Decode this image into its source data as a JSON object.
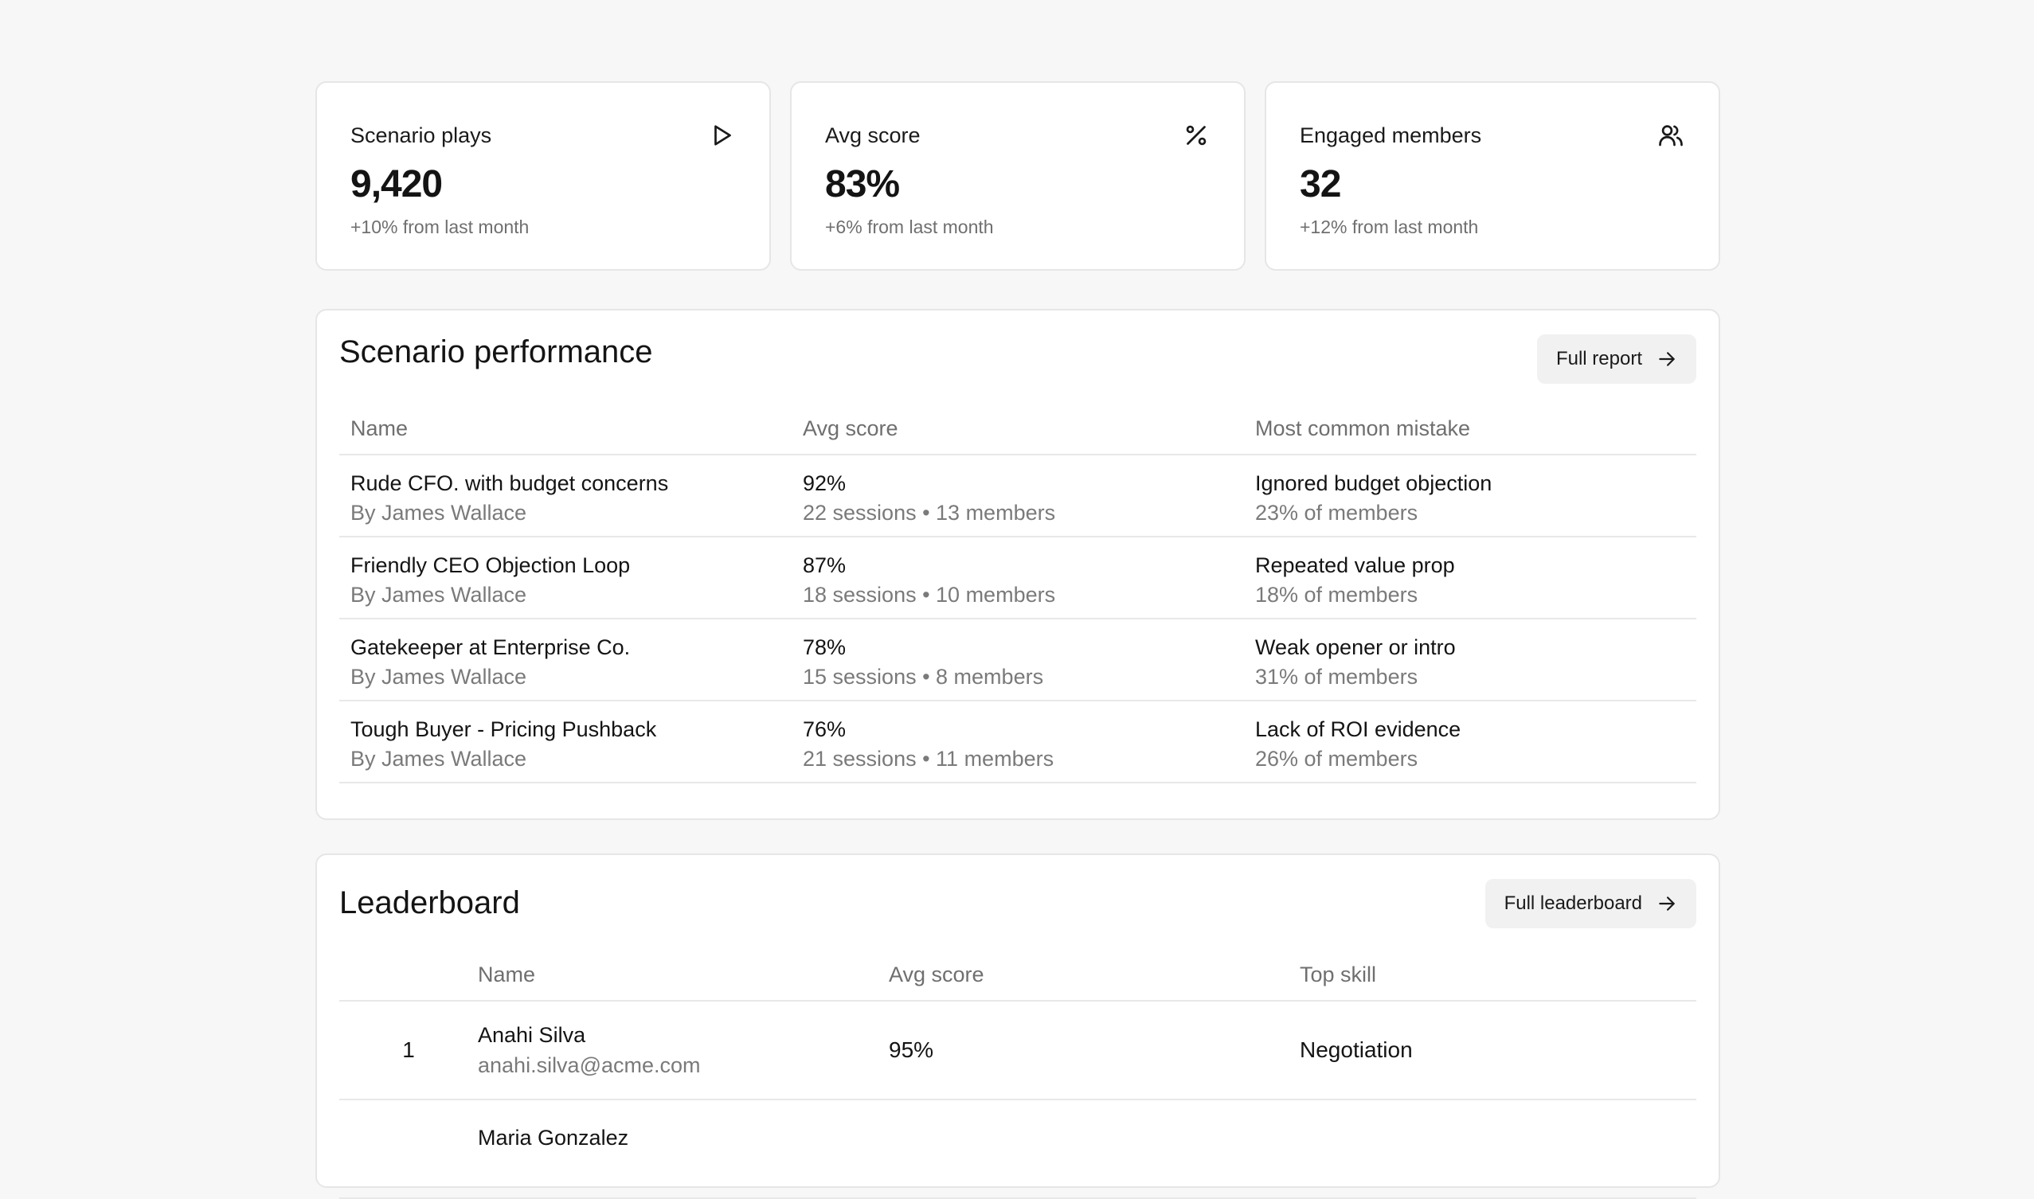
{
  "stats": [
    {
      "label": "Scenario plays",
      "value": "9,420",
      "delta": "+10% from last month",
      "icon": "play-icon"
    },
    {
      "label": "Avg score",
      "value": "83%",
      "delta": "+6% from last month",
      "icon": "percent-icon"
    },
    {
      "label": "Engaged members",
      "value": "32",
      "delta": "+12% from last month",
      "icon": "users-icon"
    }
  ],
  "performance": {
    "title": "Scenario performance",
    "button_label": "Full report",
    "columns": [
      "Name",
      "Avg score",
      "Most common mistake"
    ],
    "rows": [
      {
        "name": "Rude CFO. with budget concerns",
        "author": "By James Wallace",
        "score": "92%",
        "sessions": "22 sessions • 13 members",
        "mistake": "Ignored budget objection",
        "mistake_share": "23% of members"
      },
      {
        "name": "Friendly CEO Objection Loop",
        "author": "By James Wallace",
        "score": "87%",
        "sessions": "18 sessions • 10 members",
        "mistake": "Repeated value prop",
        "mistake_share": "18% of members"
      },
      {
        "name": "Gatekeeper at Enterprise Co.",
        "author": "By James Wallace",
        "score": "78%",
        "sessions": "15 sessions • 8 members",
        "mistake": "Weak opener or intro",
        "mistake_share": "31% of members"
      },
      {
        "name": "Tough Buyer - Pricing Pushback",
        "author": "By James Wallace",
        "score": "76%",
        "sessions": "21 sessions • 11 members",
        "mistake": "Lack of ROI evidence",
        "mistake_share": "26% of members"
      }
    ]
  },
  "leaderboard": {
    "title": "Leaderboard",
    "button_label": "Full leaderboard",
    "columns": [
      "",
      "Name",
      "Avg score",
      "Top skill"
    ],
    "rows": [
      {
        "rank": "1",
        "name": "Anahi Silva",
        "email": "anahi.silva@acme.com",
        "score": "95%",
        "skill": "Negotiation"
      },
      {
        "rank": "",
        "name": "Maria Gonzalez",
        "email": "",
        "score": "",
        "skill": ""
      }
    ]
  }
}
